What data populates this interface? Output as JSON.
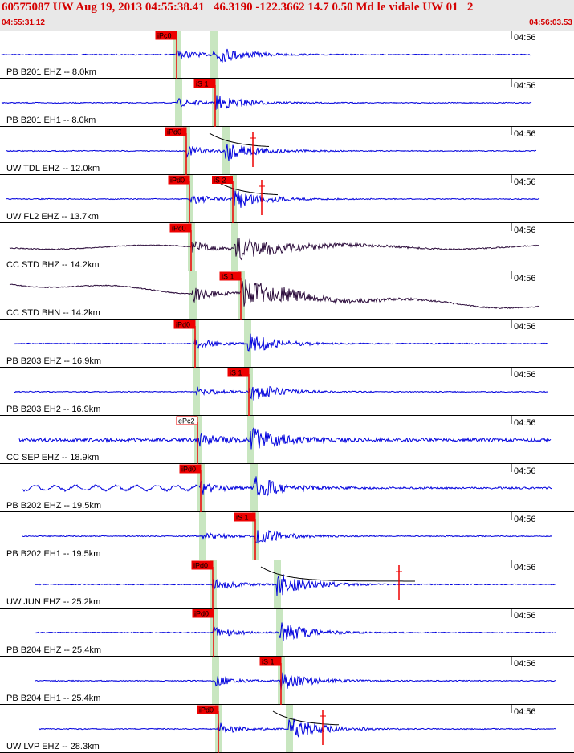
{
  "header": {
    "title": "60575087 UW Aug 19, 2013 04:55:38.41   46.3190 -122.3662 14.7 0.50 Md le vidale UW 01   2",
    "start_time": "04:55:31.12",
    "end_time": "04:56:03.53"
  },
  "minute_label": "04:56",
  "colors": {
    "title": "#d40000",
    "trace_blue": "#0000dd",
    "trace_dark": "#2a0a3a",
    "pick_flag": "#ee0000",
    "window_green": "#c8e6c0",
    "coda_curve": "#000000"
  },
  "traces": [
    {
      "label": "PB B201 EHZ -- 8.0km",
      "pick": "iPc0",
      "color": "blue"
    },
    {
      "label": "PB B201 EH1 -- 8.0km",
      "pick": "iS 1",
      "color": "blue"
    },
    {
      "label": "UW TDL EHZ -- 12.0km",
      "pick": "iPd0",
      "color": "blue"
    },
    {
      "label": "UW FL2 EHZ -- 13.7km",
      "pick": "iPd0",
      "pick2": "iS 2",
      "color": "blue"
    },
    {
      "label": "CC STD BHZ -- 14.2km",
      "pick": "iPc0",
      "color": "dark"
    },
    {
      "label": "CC STD BHN -- 14.2km",
      "pick": "iS 1",
      "color": "dark"
    },
    {
      "label": "PB B203 EHZ -- 16.9km",
      "pick": "iPd0",
      "color": "blue"
    },
    {
      "label": "PB B203 EH2 -- 16.9km",
      "pick": "iS 1",
      "color": "blue"
    },
    {
      "label": "CC SEP EHZ -- 18.9km",
      "pick": "ePc2",
      "color": "blue"
    },
    {
      "label": "PB B202 EHZ -- 19.5km",
      "pick": "iPd0",
      "color": "blue"
    },
    {
      "label": "PB B202 EH1 -- 19.5km",
      "pick": "iS 1",
      "color": "blue"
    },
    {
      "label": "UW JUN EHZ -- 25.2km",
      "pick": "iPd0",
      "color": "blue"
    },
    {
      "label": "PB B204 EHZ -- 25.4km",
      "pick": "iPd0",
      "color": "blue"
    },
    {
      "label": "PB B204 EH1 -- 25.4km",
      "pick": "iS 1",
      "color": "blue"
    },
    {
      "label": "UW LVP EHZ -- 28.3km",
      "pick": "iPd0",
      "color": "blue"
    }
  ]
}
